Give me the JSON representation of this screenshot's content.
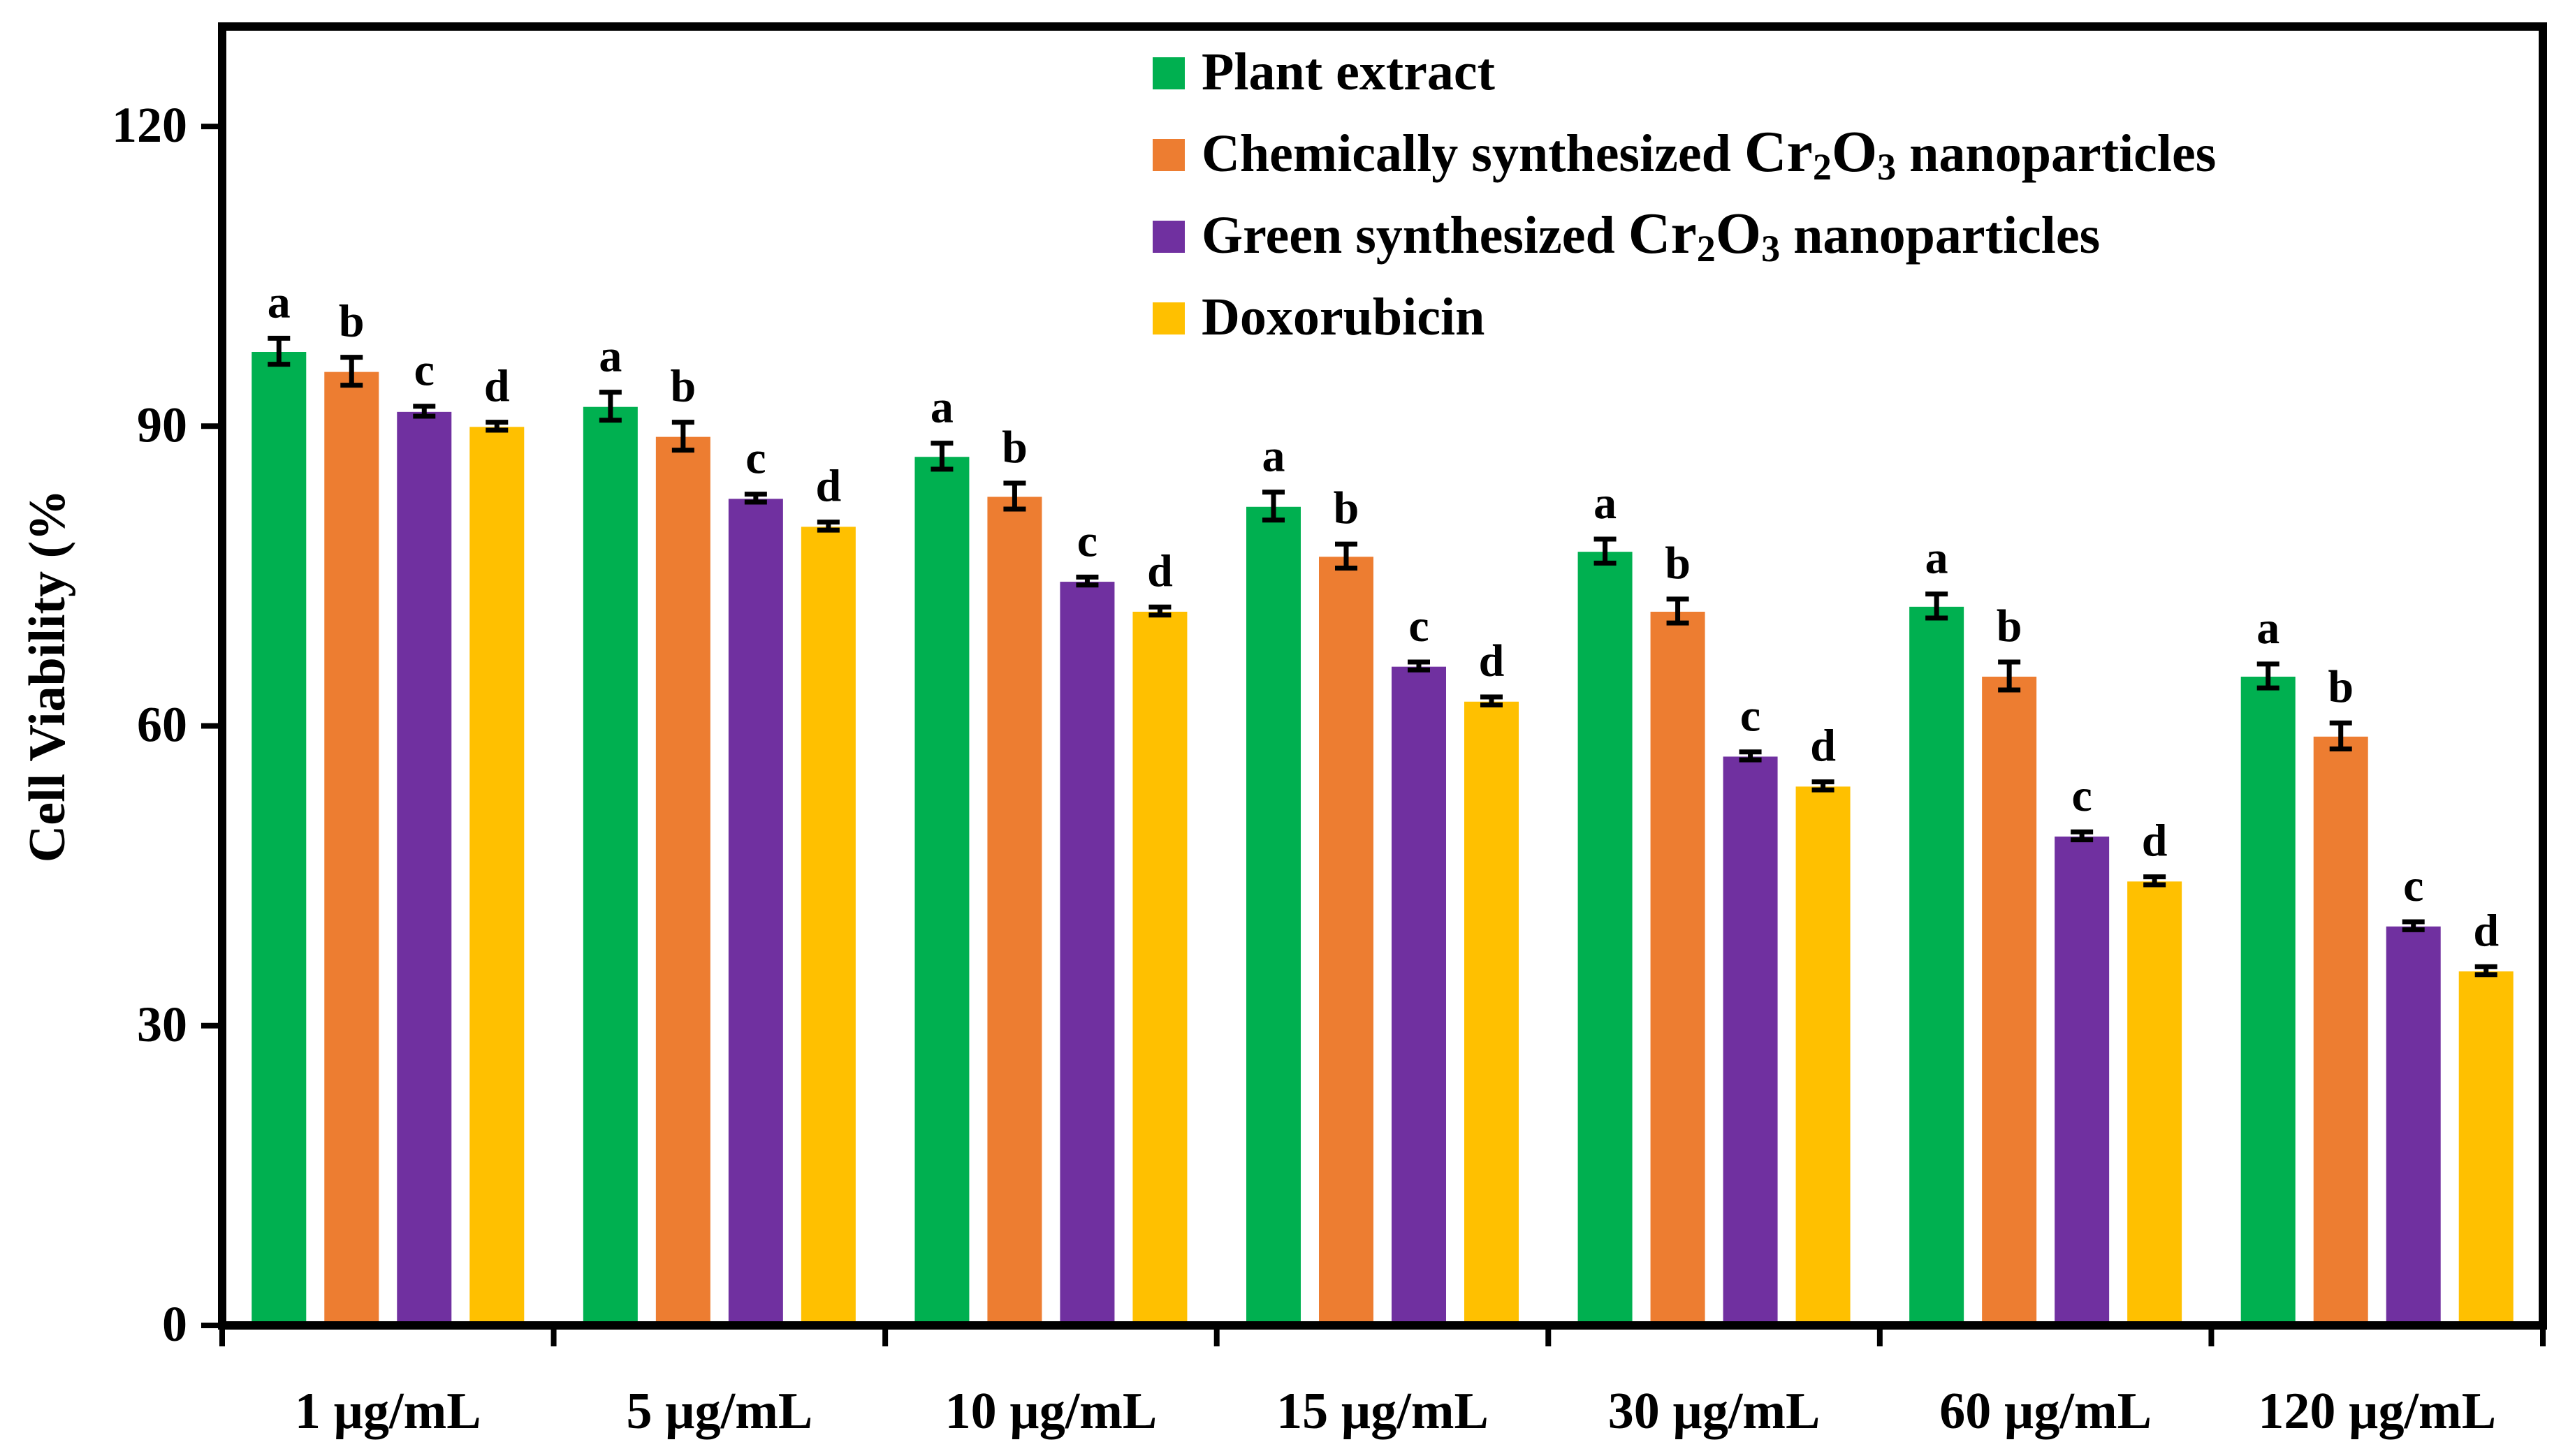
{
  "chart_data": {
    "type": "bar",
    "title": "",
    "xlabel": "",
    "ylabel": "Cell Viability (%",
    "ylim": [
      0,
      130
    ],
    "yticks": [
      0,
      30,
      60,
      90,
      120
    ],
    "grid": false,
    "legend_position": "top-right",
    "categories": [
      "1 µg/mL",
      "5 µg/mL",
      "10 µg/mL",
      "15 µg/mL",
      "30 µg/mL",
      "60 µg/mL",
      "120 µg/mL"
    ],
    "series": [
      {
        "name": "Plant extract",
        "legend_main": "Plant extract",
        "legend_formula": null,
        "legend_tail": null,
        "color": "#00b050",
        "values": [
          97.5,
          92,
          87,
          82,
          77.5,
          72,
          65
        ],
        "errors": [
          1.3,
          1.4,
          1.3,
          1.4,
          1.2,
          1.2,
          1.2
        ],
        "letter": "a"
      },
      {
        "name": "Chemically synthesized Cr2O3 nanoparticles",
        "legend_main": "Chemically synthesized",
        "legend_formula": [
          "Cr",
          "2",
          "O",
          "3"
        ],
        "legend_tail": "nanoparticles",
        "color": "#ed7d31",
        "values": [
          95.5,
          89,
          83,
          77,
          71.5,
          65,
          59
        ],
        "errors": [
          1.4,
          1.4,
          1.3,
          1.2,
          1.2,
          1.4,
          1.3
        ],
        "letter": "b"
      },
      {
        "name": "Green synthesized Cr2O3 nanoparticles",
        "legend_main": "Green synthesized",
        "legend_formula": [
          "Cr",
          "2",
          "O",
          "3"
        ],
        "legend_tail": "nanoparticles",
        "color": "#7030a0",
        "values": [
          91.5,
          82.8,
          74.5,
          66,
          57,
          49,
          40
        ],
        "errors": [
          0.5,
          0.4,
          0.4,
          0.4,
          0.4,
          0.4,
          0.4
        ],
        "letter": "c"
      },
      {
        "name": "Doxorubicin",
        "legend_main": "Doxorubicin",
        "legend_formula": null,
        "legend_tail": null,
        "color": "#ffc000",
        "values": [
          90,
          80,
          71.5,
          62.5,
          54,
          44.5,
          35.5
        ],
        "errors": [
          0.4,
          0.4,
          0.4,
          0.4,
          0.4,
          0.4,
          0.4
        ],
        "letter": "d"
      }
    ]
  }
}
